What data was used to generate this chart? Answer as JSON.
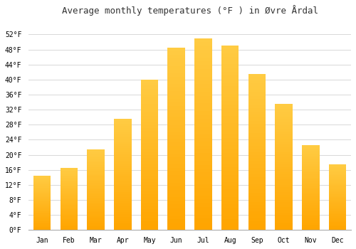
{
  "title": "Average monthly temperatures (°F ) in Øvre Årdal",
  "months": [
    "Jan",
    "Feb",
    "Mar",
    "Apr",
    "May",
    "Jun",
    "Jul",
    "Aug",
    "Sep",
    "Oct",
    "Nov",
    "Dec"
  ],
  "values": [
    14.5,
    16.5,
    21.5,
    29.5,
    40.0,
    48.5,
    51.0,
    49.0,
    41.5,
    33.5,
    22.5,
    17.5
  ],
  "bar_color_light": "#FFCC44",
  "bar_color_dark": "#FFA500",
  "ylim": [
    0,
    56
  ],
  "yticks": [
    0,
    4,
    8,
    12,
    16,
    20,
    24,
    28,
    32,
    36,
    40,
    44,
    48,
    52
  ],
  "ytick_labels": [
    "0°F",
    "4°F",
    "8°F",
    "12°F",
    "16°F",
    "20°F",
    "24°F",
    "28°F",
    "32°F",
    "36°F",
    "40°F",
    "44°F",
    "48°F",
    "52°F"
  ],
  "grid_color": "#d8d8d8",
  "background_color": "#ffffff",
  "title_fontsize": 9,
  "tick_fontsize": 7,
  "font_family": "monospace",
  "bar_width": 0.65
}
